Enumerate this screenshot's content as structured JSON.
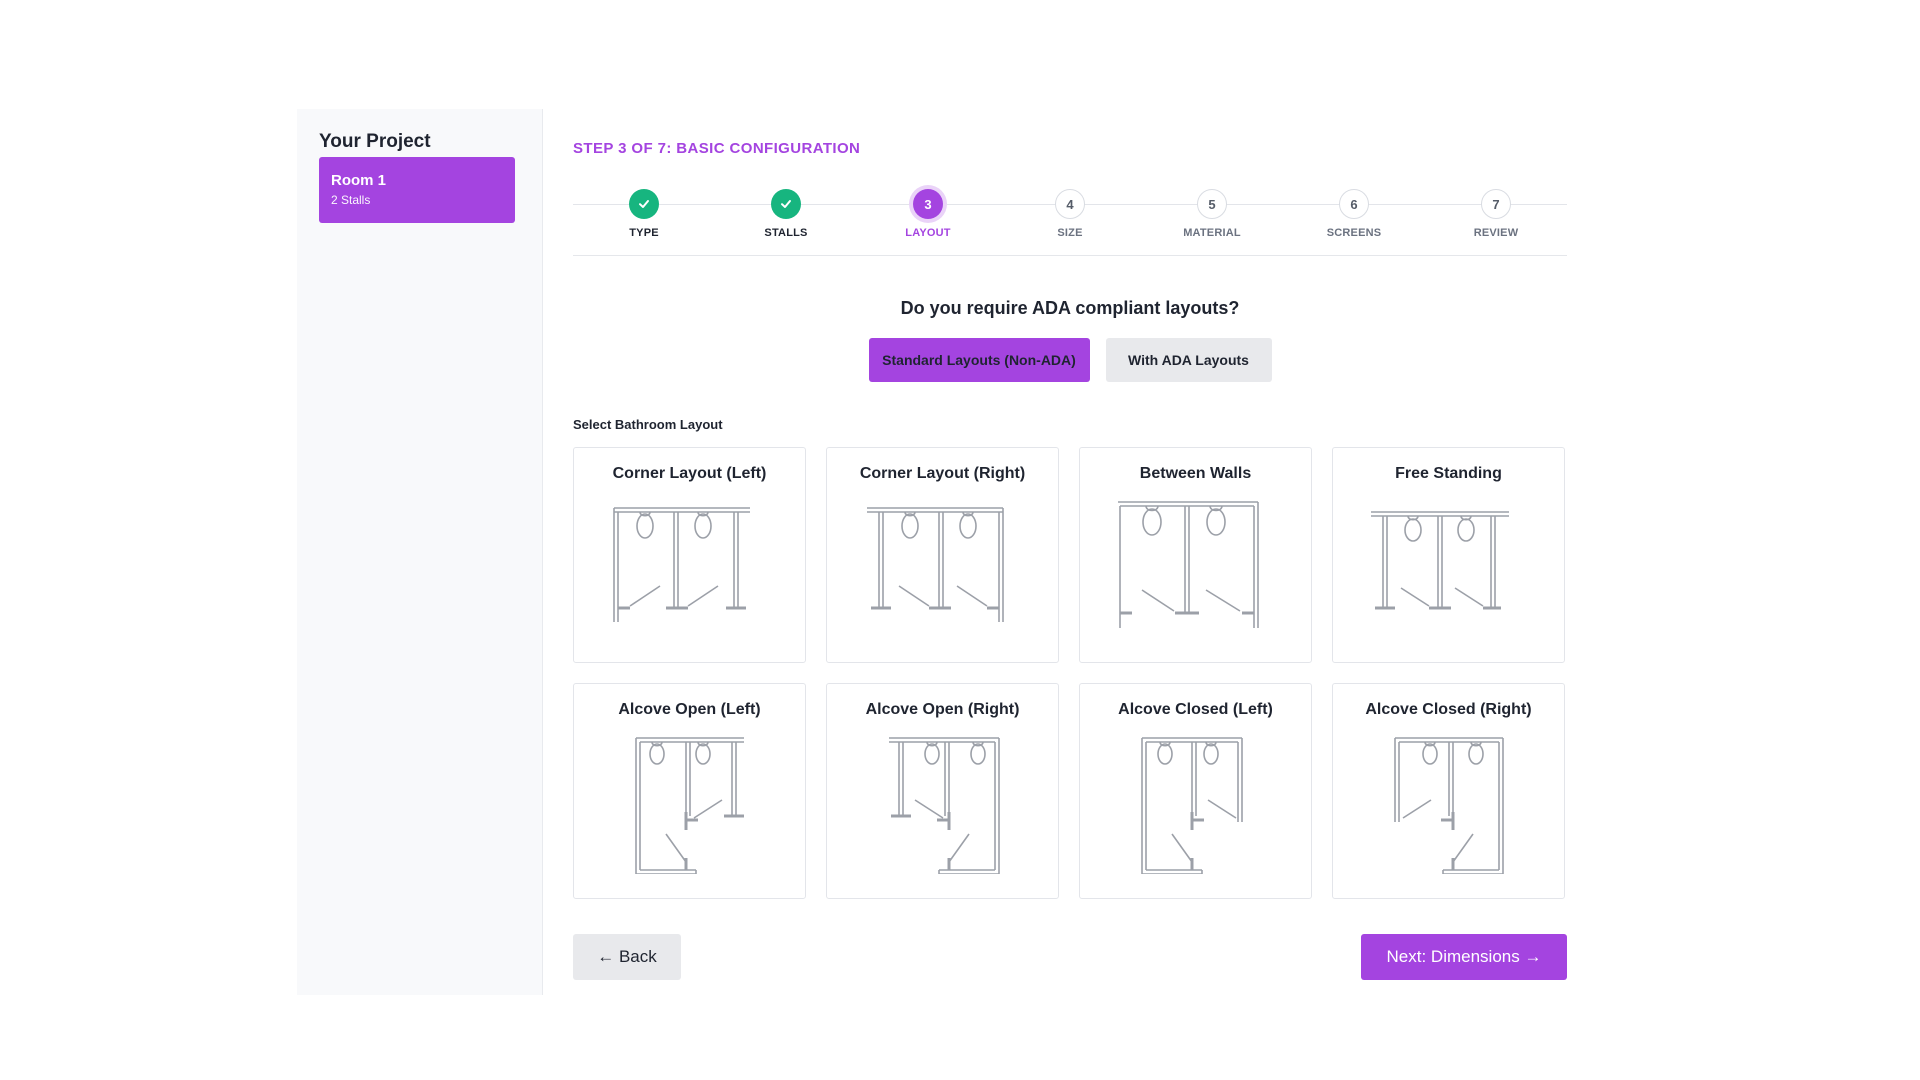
{
  "sidebar": {
    "title": "Your Project",
    "room": {
      "name": "Room 1",
      "subtitle": "2 Stalls"
    }
  },
  "colors": {
    "accent": "#a444e0",
    "done": "#17b57f",
    "neutral": "#e8e9ec"
  },
  "wizard": {
    "step_label": "STEP 3 OF 7: BASIC CONFIGURATION",
    "steps": [
      {
        "number": "1",
        "label": "TYPE",
        "state": "done",
        "icon": "check-icon"
      },
      {
        "number": "2",
        "label": "STALLS",
        "state": "done",
        "icon": "check-icon"
      },
      {
        "number": "3",
        "label": "LAYOUT",
        "state": "active"
      },
      {
        "number": "4",
        "label": "SIZE",
        "state": "todo"
      },
      {
        "number": "5",
        "label": "MATERIAL",
        "state": "todo"
      },
      {
        "number": "6",
        "label": "SCREENS",
        "state": "todo"
      },
      {
        "number": "7",
        "label": "REVIEW",
        "state": "todo"
      }
    ]
  },
  "ada": {
    "question": "Do you require ADA compliant layouts?",
    "options": [
      {
        "label": "Standard Layouts (Non-ADA)",
        "selected": true
      },
      {
        "label": "With ADA Layouts",
        "selected": false
      }
    ]
  },
  "layouts": {
    "section_label": "Select Bathroom Layout",
    "items": [
      {
        "title": "Corner Layout (Left)",
        "icon": "corner-layout-left-diagram"
      },
      {
        "title": "Corner Layout (Right)",
        "icon": "corner-layout-right-diagram"
      },
      {
        "title": "Between Walls",
        "icon": "between-walls-diagram"
      },
      {
        "title": "Free Standing",
        "icon": "free-standing-diagram"
      },
      {
        "title": "Alcove Open (Left)",
        "icon": "alcove-open-left-diagram"
      },
      {
        "title": "Alcove Open (Right)",
        "icon": "alcove-open-right-diagram"
      },
      {
        "title": "Alcove Closed (Left)",
        "icon": "alcove-closed-left-diagram"
      },
      {
        "title": "Alcove Closed (Right)",
        "icon": "alcove-closed-right-diagram"
      }
    ]
  },
  "nav": {
    "back_label": "← Back",
    "next_label": "Next: Dimensions →"
  }
}
